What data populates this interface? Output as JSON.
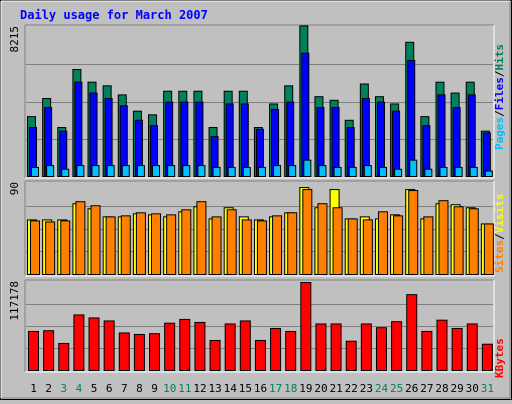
{
  "colors": {
    "hits": "#00805c",
    "files": "#0000ff",
    "pages": "#00c0ff",
    "visits": "#ffff00",
    "sites": "#ff8000",
    "kbytes": "#ff0000",
    "title": "#0000ff",
    "weekend": "#00805c",
    "weekday": "#000000"
  },
  "title": "Daily usage for March 2007",
  "chart_data": [
    {
      "type": "bar",
      "panel": "hits-files-pages",
      "ytick_label": "8215",
      "ymax": 8215,
      "categories": [
        "1",
        "2",
        "3",
        "4",
        "5",
        "6",
        "7",
        "8",
        "9",
        "10",
        "11",
        "12",
        "13",
        "14",
        "15",
        "16",
        "17",
        "18",
        "19",
        "20",
        "21",
        "22",
        "23",
        "24",
        "25",
        "26",
        "27",
        "28",
        "29",
        "30",
        "31"
      ],
      "series": [
        {
          "name": "Hits",
          "values": [
            3300,
            4300,
            2700,
            5900,
            5200,
            5000,
            4500,
            3600,
            3400,
            4700,
            4700,
            4700,
            2700,
            4700,
            4700,
            2700,
            4000,
            5000,
            8300,
            4400,
            4200,
            3100,
            5100,
            4400,
            4000,
            7400,
            3300,
            5200,
            4600,
            5200,
            2500
          ]
        },
        {
          "name": "Files",
          "values": [
            2700,
            3800,
            2500,
            5200,
            4600,
            4300,
            3900,
            3100,
            2800,
            4100,
            4100,
            4100,
            2200,
            4000,
            4000,
            2600,
            3700,
            4100,
            6800,
            3800,
            3800,
            2700,
            4300,
            4100,
            3600,
            6400,
            2800,
            4500,
            3800,
            4500,
            2400
          ]
        },
        {
          "name": "Pages",
          "values": [
            500,
            600,
            400,
            600,
            600,
            600,
            600,
            600,
            600,
            600,
            600,
            600,
            500,
            500,
            500,
            500,
            600,
            600,
            900,
            600,
            500,
            500,
            600,
            500,
            400,
            900,
            400,
            500,
            500,
            500,
            300
          ]
        }
      ],
      "legend": [
        "Pages",
        "Files",
        "Hits"
      ]
    },
    {
      "type": "bar",
      "panel": "visits-sites",
      "ytick_label": "90",
      "ymax": 90,
      "categories": [
        "1",
        "2",
        "3",
        "4",
        "5",
        "6",
        "7",
        "8",
        "9",
        "10",
        "11",
        "12",
        "13",
        "14",
        "15",
        "16",
        "17",
        "18",
        "19",
        "20",
        "21",
        "22",
        "23",
        "24",
        "25",
        "26",
        "27",
        "28",
        "29",
        "30",
        "31"
      ],
      "series": [
        {
          "name": "Visits",
          "values": [
            54,
            54,
            54,
            70,
            65,
            57,
            57,
            60,
            59,
            57,
            62,
            67,
            55,
            66,
            57,
            54,
            57,
            61,
            86,
            66,
            84,
            55,
            57,
            55,
            59,
            84,
            55,
            70,
            69,
            66,
            50
          ]
        },
        {
          "name": "Sites",
          "values": [
            53,
            52,
            53,
            72,
            68,
            57,
            58,
            61,
            60,
            59,
            64,
            72,
            57,
            64,
            54,
            53,
            58,
            61,
            84,
            70,
            66,
            55,
            54,
            62,
            58,
            83,
            57,
            73,
            67,
            65,
            50
          ]
        }
      ],
      "legend": [
        "Sites",
        "Visits"
      ]
    },
    {
      "type": "bar",
      "panel": "kbytes",
      "ytick_label": "117178",
      "ymax": 117178,
      "categories": [
        "1",
        "2",
        "3",
        "4",
        "5",
        "6",
        "7",
        "8",
        "9",
        "10",
        "11",
        "12",
        "13",
        "14",
        "15",
        "16",
        "17",
        "18",
        "19",
        "20",
        "21",
        "22",
        "23",
        "24",
        "25",
        "26",
        "27",
        "28",
        "29",
        "30",
        "31"
      ],
      "series": [
        {
          "name": "KBytes",
          "values": [
            52000,
            53000,
            36000,
            74000,
            70000,
            66000,
            50000,
            48000,
            49000,
            63000,
            68000,
            64000,
            40000,
            62000,
            66000,
            40000,
            56000,
            52000,
            120000,
            62000,
            62000,
            39000,
            62000,
            57000,
            65000,
            101000,
            52000,
            67000,
            56000,
            62000,
            35000
          ]
        }
      ],
      "legend": [
        "KBytes"
      ]
    }
  ],
  "days": [
    {
      "label": "1",
      "weekend": false
    },
    {
      "label": "2",
      "weekend": false
    },
    {
      "label": "3",
      "weekend": true
    },
    {
      "label": "4",
      "weekend": true
    },
    {
      "label": "5",
      "weekend": false
    },
    {
      "label": "6",
      "weekend": false
    },
    {
      "label": "7",
      "weekend": false
    },
    {
      "label": "8",
      "weekend": false
    },
    {
      "label": "9",
      "weekend": false
    },
    {
      "label": "10",
      "weekend": true
    },
    {
      "label": "11",
      "weekend": true
    },
    {
      "label": "12",
      "weekend": false
    },
    {
      "label": "13",
      "weekend": false
    },
    {
      "label": "14",
      "weekend": false
    },
    {
      "label": "15",
      "weekend": false
    },
    {
      "label": "16",
      "weekend": false
    },
    {
      "label": "17",
      "weekend": true
    },
    {
      "label": "18",
      "weekend": true
    },
    {
      "label": "19",
      "weekend": false
    },
    {
      "label": "20",
      "weekend": false
    },
    {
      "label": "21",
      "weekend": false
    },
    {
      "label": "22",
      "weekend": false
    },
    {
      "label": "23",
      "weekend": false
    },
    {
      "label": "24",
      "weekend": true
    },
    {
      "label": "25",
      "weekend": true
    },
    {
      "label": "26",
      "weekend": false
    },
    {
      "label": "27",
      "weekend": false
    },
    {
      "label": "28",
      "weekend": false
    },
    {
      "label": "29",
      "weekend": false
    },
    {
      "label": "30",
      "weekend": false
    },
    {
      "label": "31",
      "weekend": true
    }
  ]
}
